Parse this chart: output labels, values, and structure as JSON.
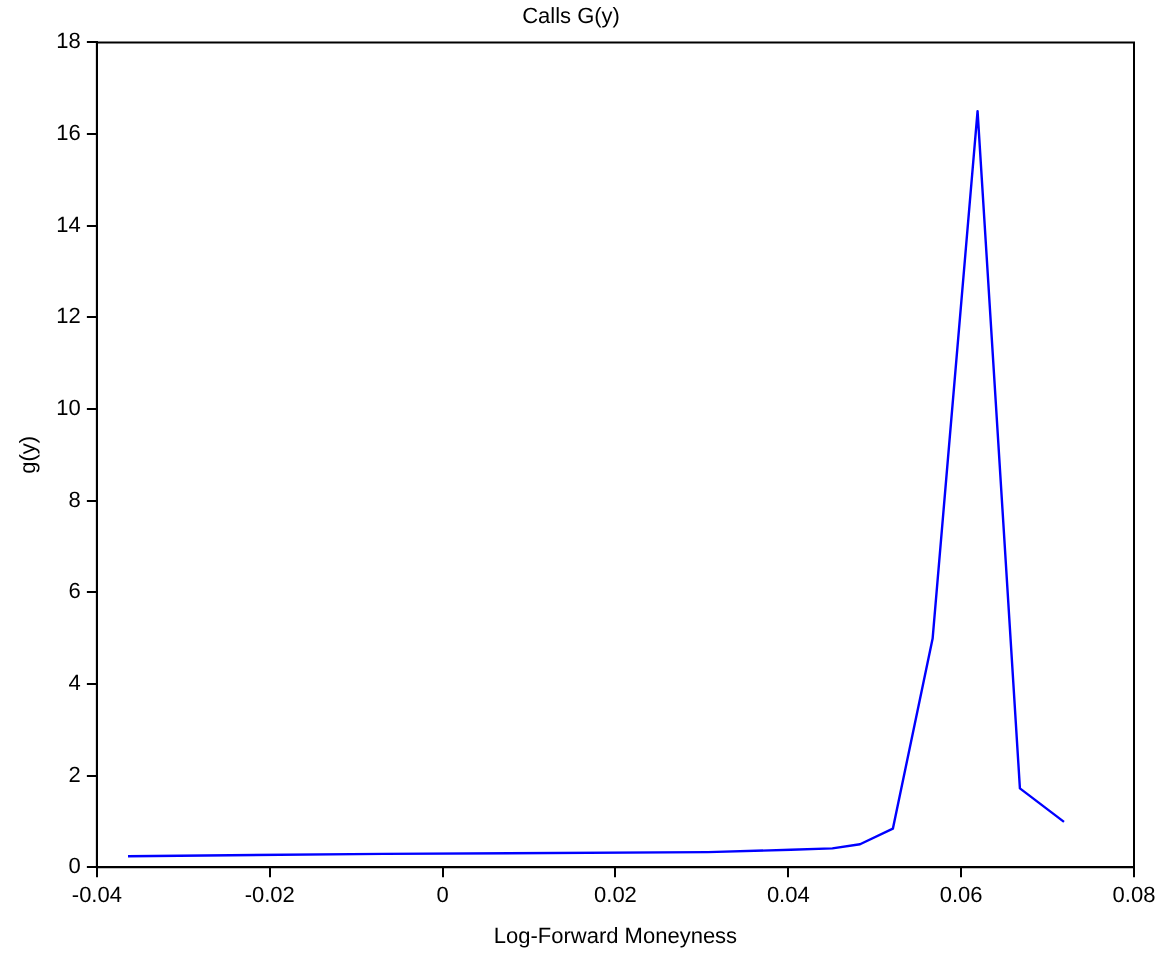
{
  "chart_data": {
    "type": "line",
    "title": "Calls G(y)",
    "xlabel": "Log-Forward Moneyness",
    "ylabel": "g(y)",
    "x": [
      -0.0364,
      -0.0068,
      0.0307,
      0.0403,
      0.0451,
      0.0483,
      0.0521,
      0.0567,
      0.0619,
      0.0668,
      0.0719
    ],
    "series": [
      {
        "color": "#0000ff",
        "values": [
          0.24,
          0.29,
          0.33,
          0.38,
          0.41,
          0.5,
          0.84,
          4.99,
          16.5,
          1.72,
          0.99
        ]
      }
    ],
    "xlim": [
      -0.04,
      0.08
    ],
    "xticks": [
      -0.04,
      -0.02,
      0,
      0.02,
      0.04,
      0.06,
      0.08
    ],
    "ylim": [
      0,
      18
    ],
    "yticks": [
      0,
      2,
      4,
      6,
      8,
      10,
      12,
      14,
      16,
      18
    ],
    "grid": false,
    "legend": false,
    "marker": "none",
    "line_style": "solid"
  }
}
